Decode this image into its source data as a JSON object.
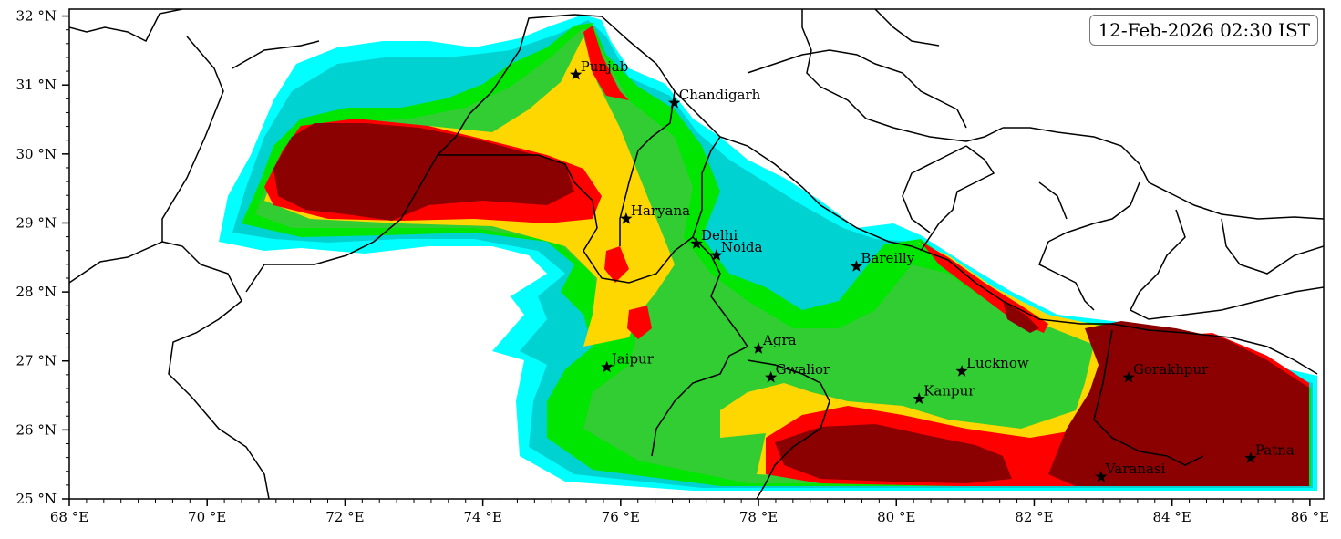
{
  "map": {
    "timestamp": "12-Feb-2026 02:30 IST",
    "lon_range": [
      68,
      86.2
    ],
    "lat_range": [
      25,
      32.1
    ],
    "x_ticks": [
      {
        "value": 68,
        "label": "68 °E"
      },
      {
        "value": 70,
        "label": "70 °E"
      },
      {
        "value": 72,
        "label": "72 °E"
      },
      {
        "value": 74,
        "label": "74 °E"
      },
      {
        "value": 76,
        "label": "76 °E"
      },
      {
        "value": 78,
        "label": "78 °E"
      },
      {
        "value": 80,
        "label": "80 °E"
      },
      {
        "value": 82,
        "label": "82 °E"
      },
      {
        "value": 84,
        "label": "84 °E"
      },
      {
        "value": 86,
        "label": "86 °E"
      }
    ],
    "y_ticks": [
      {
        "value": 32,
        "label": "32 °N"
      },
      {
        "value": 31,
        "label": "31 °N"
      },
      {
        "value": 30,
        "label": "30 °N"
      },
      {
        "value": 29,
        "label": "29 °N"
      },
      {
        "value": 28,
        "label": "28 °N"
      },
      {
        "value": 27,
        "label": "27 °N"
      },
      {
        "value": 26,
        "label": "26 °N"
      },
      {
        "value": 25,
        "label": "25 °N"
      }
    ],
    "cities": [
      {
        "name": "Punjab",
        "lon": 75.35,
        "lat": 31.15
      },
      {
        "name": "Chandigarh",
        "lon": 76.78,
        "lat": 30.74
      },
      {
        "name": "Haryana",
        "lon": 76.08,
        "lat": 29.06
      },
      {
        "name": "Delhi",
        "lon": 77.1,
        "lat": 28.7
      },
      {
        "name": "Noida",
        "lon": 77.39,
        "lat": 28.53
      },
      {
        "name": "Bareilly",
        "lon": 79.42,
        "lat": 28.37
      },
      {
        "name": "Jaipur",
        "lon": 75.8,
        "lat": 26.91
      },
      {
        "name": "Agra",
        "lon": 78.0,
        "lat": 27.18
      },
      {
        "name": "Gwalior",
        "lon": 78.18,
        "lat": 26.76
      },
      {
        "name": "Lucknow",
        "lon": 80.95,
        "lat": 26.85
      },
      {
        "name": "Kanpur",
        "lon": 80.33,
        "lat": 26.45
      },
      {
        "name": "Gorakhpur",
        "lon": 83.37,
        "lat": 26.76
      },
      {
        "name": "Varanasi",
        "lon": 82.97,
        "lat": 25.32
      },
      {
        "name": "Patna",
        "lon": 85.14,
        "lat": 25.59
      }
    ],
    "fill_colors": {
      "level_1": "#00ffff",
      "level_2": "#00d2d2",
      "level_3": "#00e600",
      "level_4": "#32cd32",
      "level_5": "#ffd700",
      "level_6": "#ff0000",
      "level_7": "#8b0000"
    }
  }
}
